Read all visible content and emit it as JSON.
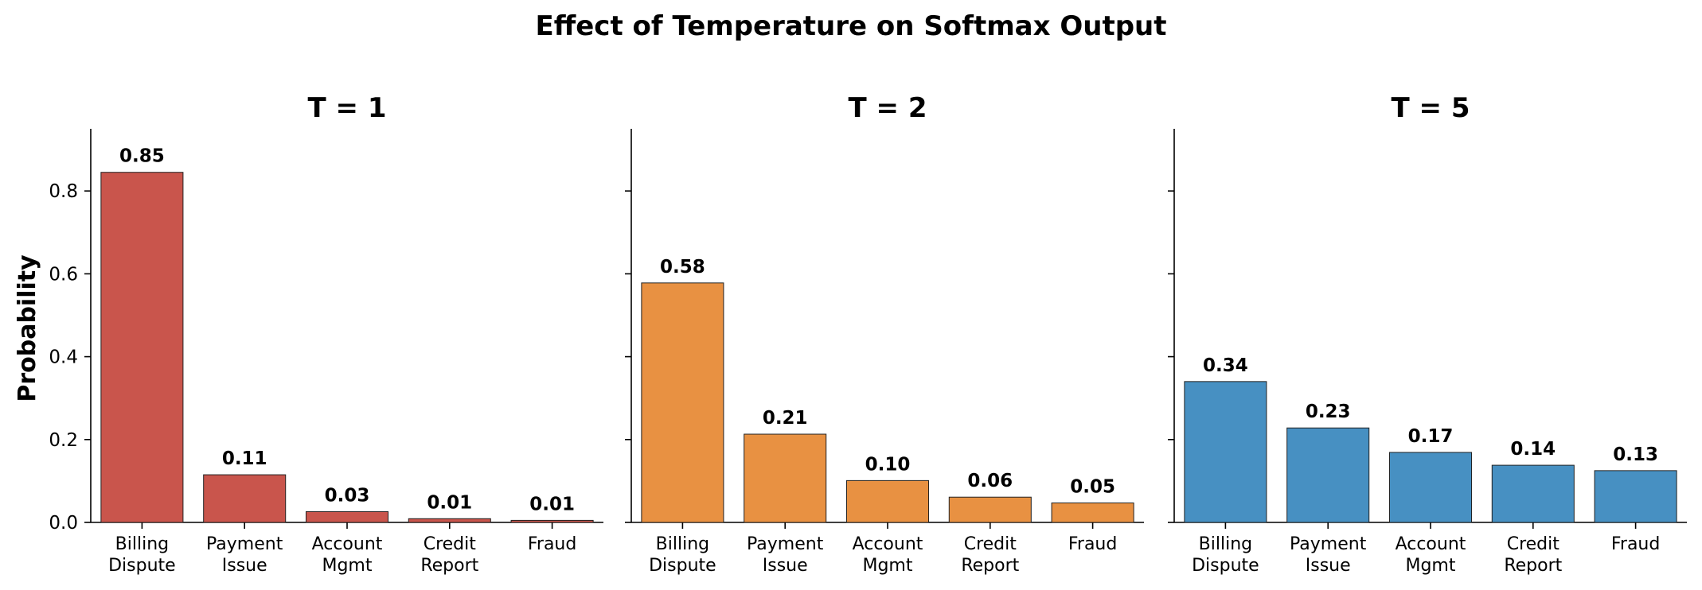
{
  "chart_data": {
    "type": "bar",
    "title": "Effect of Temperature on Softmax Output",
    "ylabel": "Probability",
    "ylim": [
      0,
      0.95
    ],
    "yticks": [
      "0.0",
      "0.2",
      "0.4",
      "0.6",
      "0.8"
    ],
    "grid": false,
    "categories": [
      [
        "Billing",
        "Dispute"
      ],
      [
        "Payment",
        "Issue"
      ],
      [
        "Account",
        "Mgmt"
      ],
      [
        "Credit",
        "Report"
      ],
      [
        "Fraud"
      ]
    ],
    "panels": [
      {
        "title": "T = 1",
        "color": "#c9554c",
        "values": [
          0.845,
          0.115,
          0.026,
          0.009,
          0.005
        ],
        "labels": [
          "0.85",
          "0.11",
          "0.03",
          "0.01",
          "0.01"
        ]
      },
      {
        "title": "T = 2",
        "color": "#e89142",
        "values": [
          0.578,
          0.213,
          0.101,
          0.061,
          0.047
        ],
        "labels": [
          "0.58",
          "0.21",
          "0.10",
          "0.06",
          "0.05"
        ]
      },
      {
        "title": "T = 5",
        "color": "#4790c2",
        "values": [
          0.34,
          0.228,
          0.169,
          0.138,
          0.125
        ],
        "labels": [
          "0.34",
          "0.23",
          "0.17",
          "0.14",
          "0.13"
        ]
      }
    ]
  }
}
